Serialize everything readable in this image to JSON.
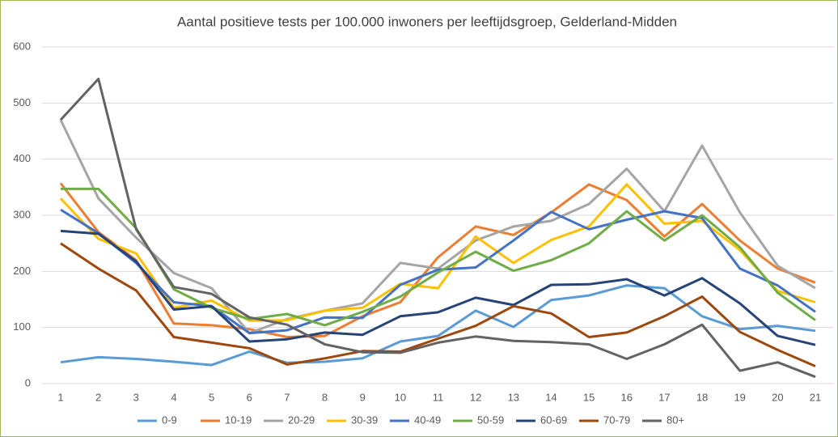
{
  "chart_data": {
    "type": "line",
    "title": "Aantal positieve tests per 100.000 inwoners per leeftijdsgroep, Gelderland-Midden",
    "categories": [
      "1",
      "2",
      "3",
      "4",
      "5",
      "6",
      "7",
      "8",
      "9",
      "10",
      "11",
      "12",
      "13",
      "14",
      "15",
      "16",
      "17",
      "18",
      "19",
      "20",
      "21"
    ],
    "ylim": [
      0,
      600
    ],
    "yticks": [
      0,
      100,
      200,
      300,
      400,
      500,
      600
    ],
    "grid": true,
    "legend": "bottom",
    "series": [
      {
        "name": "0-9",
        "color": "#5b9bd5",
        "values": [
          38,
          47,
          44,
          39,
          33,
          57,
          37,
          39,
          45,
          75,
          85,
          130,
          101,
          149,
          157,
          175,
          170,
          120,
          97,
          103,
          94
        ]
      },
      {
        "name": "10-19",
        "color": "#ed7d31",
        "values": [
          357,
          270,
          220,
          107,
          104,
          97,
          83,
          85,
          120,
          145,
          225,
          280,
          265,
          305,
          355,
          327,
          262,
          320,
          255,
          205,
          180
        ]
      },
      {
        "name": "20-29",
        "color": "#a5a5a5",
        "values": [
          470,
          330,
          260,
          197,
          170,
          90,
          115,
          130,
          143,
          215,
          205,
          255,
          280,
          290,
          320,
          383,
          307,
          424,
          305,
          210,
          170
        ]
      },
      {
        "name": "30-39",
        "color": "#ffc000",
        "values": [
          330,
          258,
          232,
          135,
          148,
          112,
          113,
          130,
          135,
          178,
          170,
          262,
          215,
          256,
          280,
          355,
          285,
          290,
          238,
          165,
          145
        ]
      },
      {
        "name": "40-49",
        "color": "#4472c4",
        "values": [
          310,
          268,
          215,
          145,
          138,
          90,
          95,
          118,
          117,
          176,
          203,
          207,
          255,
          306,
          275,
          292,
          307,
          295,
          205,
          175,
          128
        ]
      },
      {
        "name": "50-59",
        "color": "#70ad47",
        "values": [
          347,
          347,
          277,
          168,
          135,
          115,
          124,
          104,
          128,
          155,
          198,
          235,
          201,
          220,
          250,
          307,
          255,
          300,
          243,
          162,
          113
        ]
      },
      {
        "name": "60-69",
        "color": "#264478",
        "values": [
          272,
          267,
          218,
          132,
          138,
          75,
          79,
          91,
          87,
          120,
          127,
          153,
          140,
          176,
          177,
          186,
          157,
          188,
          143,
          85,
          69
        ]
      },
      {
        "name": "70-79",
        "color": "#9e480e",
        "values": [
          250,
          205,
          166,
          83,
          73,
          63,
          34,
          45,
          58,
          57,
          80,
          103,
          138,
          125,
          83,
          91,
          120,
          155,
          92,
          60,
          31
        ]
      },
      {
        "name": "80+",
        "color": "#636363",
        "values": [
          470,
          543,
          275,
          172,
          160,
          118,
          105,
          70,
          56,
          55,
          73,
          84,
          76,
          74,
          70,
          44,
          70,
          105,
          23,
          38,
          12
        ]
      }
    ]
  }
}
